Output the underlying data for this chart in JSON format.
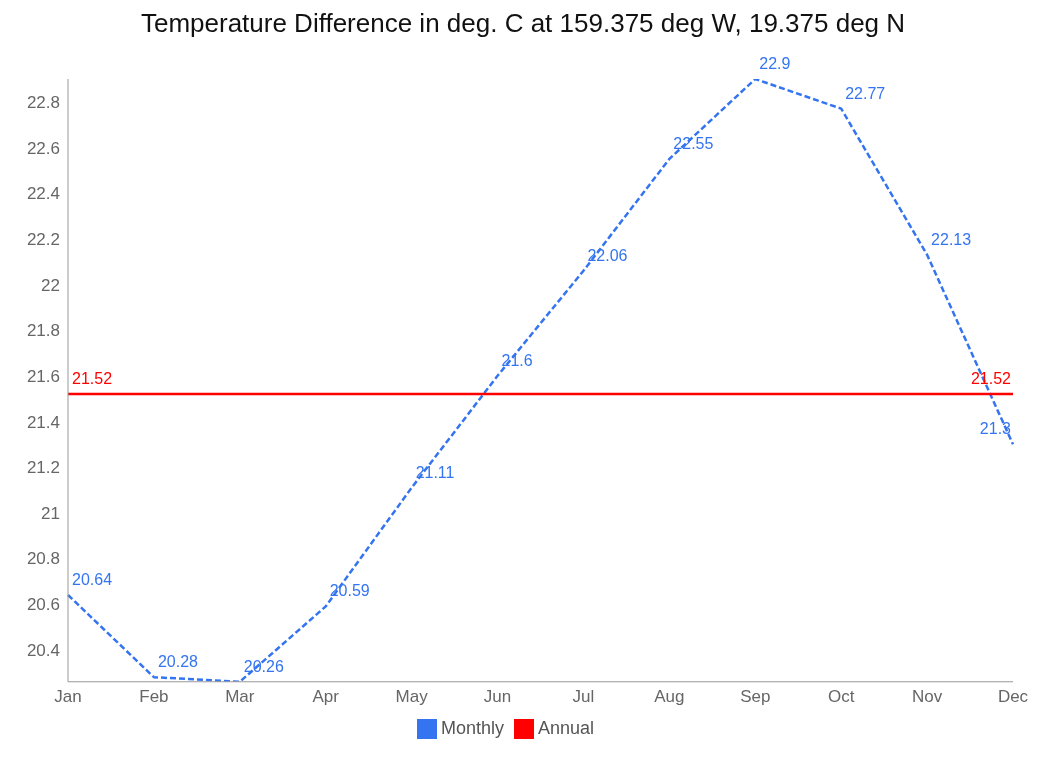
{
  "chart_data": {
    "type": "line",
    "title": "Temperature Difference in deg. C at 159.375 deg W, 19.375 deg N",
    "categories": [
      "Jan",
      "Feb",
      "Mar",
      "Apr",
      "May",
      "Jun",
      "Jul",
      "Aug",
      "Sep",
      "Oct",
      "Nov",
      "Dec"
    ],
    "series": [
      {
        "name": "Monthly",
        "color": "#3474f0",
        "line_style": "dashed",
        "values": [
          20.64,
          20.28,
          20.26,
          20.59,
          21.11,
          21.6,
          22.06,
          22.55,
          22.9,
          22.77,
          22.13,
          21.3
        ]
      },
      {
        "name": "Annual",
        "color": "#ff0000",
        "line_style": "solid",
        "values": [
          21.52,
          21.52,
          21.52,
          21.52,
          21.52,
          21.52,
          21.52,
          21.52,
          21.52,
          21.52,
          21.52,
          21.52
        ],
        "value_labels": [
          "21.52",
          null,
          null,
          null,
          null,
          null,
          null,
          null,
          null,
          null,
          null,
          "21.52"
        ]
      }
    ],
    "ylim": [
      20.26,
      22.9
    ],
    "yticks": [
      20.4,
      20.6,
      20.8,
      21,
      21.2,
      21.4,
      21.6,
      21.8,
      22,
      22.2,
      22.4,
      22.6,
      22.8
    ],
    "grid": false,
    "legend": "bottom",
    "marker": "none",
    "data_labels": true
  }
}
